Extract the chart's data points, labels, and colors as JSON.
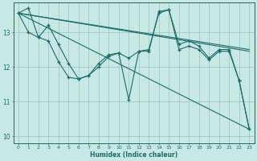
{
  "xlabel": "Humidex (Indice chaleur)",
  "background_color": "#c8e8e4",
  "grid_color": "#a0c8c4",
  "line_color": "#1a6b6b",
  "xlim": [
    -0.5,
    23.5
  ],
  "ylim": [
    9.8,
    13.85
  ],
  "yticks": [
    10,
    11,
    12,
    13
  ],
  "xticks": [
    0,
    1,
    2,
    3,
    4,
    5,
    6,
    7,
    8,
    9,
    10,
    11,
    12,
    13,
    14,
    15,
    16,
    17,
    18,
    19,
    20,
    21,
    22,
    23
  ],
  "series1_x": [
    0,
    1,
    2,
    3,
    4,
    5,
    6,
    7,
    8,
    9,
    10,
    11,
    12,
    13,
    14,
    15,
    16,
    17,
    18,
    19,
    20,
    21,
    22,
    23
  ],
  "series1_y": [
    13.55,
    13.7,
    12.85,
    12.75,
    12.15,
    11.7,
    11.65,
    11.75,
    12.0,
    12.3,
    12.4,
    11.05,
    12.45,
    12.45,
    13.6,
    13.65,
    12.5,
    12.6,
    12.5,
    12.2,
    12.45,
    12.45,
    11.6,
    10.2
  ],
  "series2_x": [
    0,
    1,
    2,
    3,
    4,
    5,
    6,
    7,
    8,
    9,
    10,
    11,
    12,
    13,
    14,
    15,
    16,
    17,
    18,
    19,
    20,
    21,
    22,
    23
  ],
  "series2_y": [
    13.55,
    13.0,
    12.85,
    13.2,
    12.65,
    12.1,
    11.65,
    11.75,
    12.1,
    12.35,
    12.4,
    12.25,
    12.45,
    12.5,
    13.55,
    13.65,
    12.65,
    12.75,
    12.6,
    12.25,
    12.5,
    12.5,
    11.6,
    10.2
  ],
  "trend1_x": [
    0,
    23
  ],
  "trend1_y": [
    13.55,
    12.45
  ],
  "trend2_x": [
    0,
    23
  ],
  "trend2_y": [
    13.55,
    10.2
  ],
  "trend3_x": [
    0,
    23
  ],
  "trend3_y": [
    13.55,
    12.5
  ]
}
